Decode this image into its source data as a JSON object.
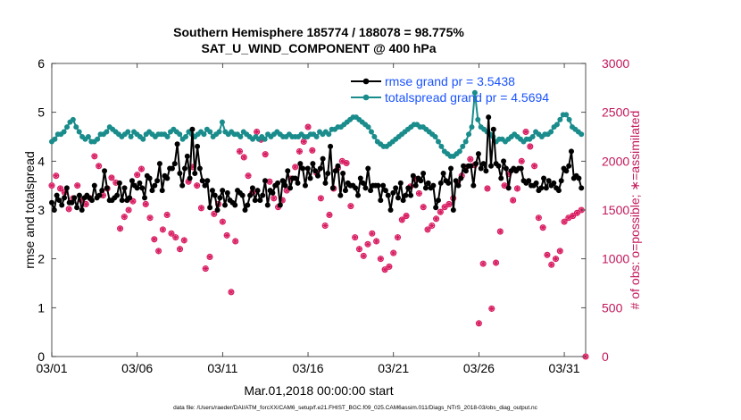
{
  "chart_data": {
    "type": "line",
    "title": [
      "Southern Hemisphere 185774 / 188078 = 98.775%",
      "SAT_U_WIND_COMPONENT @ 400 hPa"
    ],
    "xlabel": "Mar.01,2018 00:00:00 start",
    "ylabel_left": "rmse and totalspread",
    "ylabel_right": "# of obs: o=possible; ∗=assimilated",
    "footer": "data file: /Users/raeder/DAI/ATM_forcXX/CAM6_setup/f.e21.FHIST_BGC.f09_025.CAM6assim.011/Diags_NTrS_2018-03/obs_diag_output.nc",
    "xlim": [
      0,
      31.25
    ],
    "ylim_left": [
      0,
      6
    ],
    "ylim_right": [
      0,
      3000
    ],
    "x_ticks": [
      0,
      5,
      10,
      15,
      20,
      25,
      30
    ],
    "x_tick_labels": [
      "03/01",
      "03/06",
      "03/11",
      "03/16",
      "03/21",
      "03/26",
      "03/31"
    ],
    "y_left_ticks": [
      "0",
      "1",
      "2",
      "3",
      "4",
      "5",
      "6"
    ],
    "y_right_ticks": [
      "0",
      "500",
      "1000",
      "1500",
      "2000",
      "2500",
      "3000"
    ],
    "colors": {
      "rmse": "#000000",
      "spread": "#1a8c8c",
      "obs": "#d81b60",
      "legend_text": "#1a53ff",
      "axis_right": "#c2185b"
    },
    "legend": [
      {
        "name": "rmse",
        "label": "rmse grand pr = 3.5438"
      },
      {
        "name": "spread",
        "label": "totalspread grand pr = 4.5694"
      }
    ],
    "series": [
      {
        "name": "rmse",
        "values": [
          3.15,
          3.0,
          3.3,
          3.2,
          3.1,
          3.25,
          3.45,
          3.15,
          3.15,
          3.25,
          3.05,
          3.3,
          3.0,
          3.25,
          3.3,
          3.25,
          3.2,
          3.5,
          3.25,
          3.3,
          3.4,
          3.8,
          3.45,
          3.2,
          3.2,
          3.25,
          3.3,
          3.55,
          3.2,
          3.45,
          3.2,
          3.25,
          3.6,
          3.5,
          3.45,
          3.55,
          3.45,
          3.25,
          3.7,
          3.65,
          3.4,
          3.5,
          3.6,
          3.95,
          3.4,
          3.7,
          3.65,
          3.85,
          3.85,
          3.95,
          4.35,
          3.75,
          3.5,
          3.85,
          4.1,
          3.65,
          4.65,
          3.75,
          4.3,
          3.85,
          3.6,
          3.5,
          3.6,
          3.05,
          3.4,
          3.3,
          3.0,
          3.25,
          3.4,
          3.1,
          3.35,
          3.2,
          3.15,
          3.1,
          3.4,
          3.35,
          3.3,
          3.0,
          3.1,
          3.3,
          3.45,
          3.2,
          3.4,
          3.2,
          3.3,
          3.6,
          3.1,
          3.4,
          3.35,
          3.5,
          3.55,
          3.1,
          3.6,
          3.5,
          3.8,
          3.45,
          3.65,
          3.65,
          3.55,
          3.95,
          3.85,
          3.5,
          3.85,
          3.65,
          3.95,
          3.8,
          3.7,
          3.85,
          4.05,
          3.55,
          3.75,
          4.3,
          3.45,
          3.8,
          3.9,
          3.3,
          3.75,
          3.4,
          3.55,
          3.5,
          3.5,
          3.45,
          3.3,
          3.65,
          3.55,
          3.45,
          3.85,
          3.4,
          3.5,
          3.5,
          3.5,
          3.2,
          3.5,
          3.4,
          3.3,
          3.0,
          3.35,
          3.45,
          3.25,
          3.55,
          3.2,
          3.3,
          3.45,
          3.3,
          3.7,
          3.5,
          3.65,
          3.6,
          3.75,
          3.45,
          3.55,
          3.45,
          3.5,
          3.05,
          3.2,
          3.55,
          3.75,
          3.6,
          3.55,
          3.85,
          3.0,
          3.6,
          3.5,
          3.65,
          3.9,
          3.8,
          3.9,
          3.9,
          3.5,
          3.95,
          4.15,
          3.85,
          3.95,
          3.8,
          4.9,
          3.9,
          4.65,
          3.95,
          3.9,
          3.65,
          4.0,
          3.85,
          3.45,
          3.8,
          3.85,
          3.8,
          3.85,
          3.85,
          3.6,
          3.55,
          3.6,
          3.5,
          3.5,
          3.55,
          3.4,
          3.45,
          3.65,
          3.45,
          3.6,
          3.5,
          3.55,
          3.45,
          3.4,
          3.6,
          3.85,
          3.8,
          3.9,
          4.2,
          3.65,
          3.7,
          3.65,
          3.45
        ]
      },
      {
        "name": "totalspread",
        "values": [
          4.4,
          4.45,
          4.55,
          4.55,
          4.6,
          4.7,
          4.8,
          4.85,
          4.7,
          4.6,
          4.5,
          4.45,
          4.5,
          4.4,
          4.4,
          4.45,
          4.55,
          4.55,
          4.6,
          4.7,
          4.65,
          4.6,
          4.55,
          4.5,
          4.55,
          4.6,
          4.5,
          4.6,
          4.55,
          4.5,
          4.45,
          4.55,
          4.6,
          4.55,
          4.5,
          4.55,
          4.55,
          4.55,
          4.5,
          4.6,
          4.65,
          4.6,
          4.55,
          4.45,
          4.5,
          4.6,
          4.55,
          4.5,
          4.55,
          4.6,
          4.55,
          4.65,
          4.6,
          4.5,
          4.55,
          4.6,
          4.8,
          4.6,
          4.55,
          4.6,
          4.55,
          4.55,
          4.5,
          4.6,
          4.55,
          4.5,
          4.45,
          4.5,
          4.45,
          4.5,
          4.45,
          4.55,
          4.5,
          4.55,
          4.6,
          4.55,
          4.5,
          4.5,
          4.55,
          4.5,
          4.5,
          4.5,
          4.55,
          4.5,
          4.5,
          4.55,
          4.55,
          4.5,
          4.6,
          4.55,
          4.6,
          4.55,
          4.65,
          4.65,
          4.7,
          4.7,
          4.75,
          4.8,
          4.85,
          4.9,
          4.9,
          4.85,
          4.8,
          4.75,
          4.7,
          4.6,
          4.5,
          4.4,
          4.35,
          4.3,
          4.3,
          4.35,
          4.4,
          4.45,
          4.5,
          4.55,
          4.6,
          4.65,
          4.7,
          4.75,
          4.75,
          4.7,
          4.7,
          4.65,
          4.6,
          4.55,
          4.5,
          4.4,
          4.3,
          4.2,
          4.15,
          4.1,
          4.1,
          4.15,
          4.2,
          4.3,
          4.4,
          4.55,
          4.7,
          5.4,
          4.85,
          4.7,
          4.65,
          4.6,
          4.55,
          4.5,
          4.4,
          4.45,
          4.45,
          4.4,
          4.45,
          4.5,
          4.55,
          4.5,
          4.45,
          4.4,
          4.45,
          4.45,
          4.5,
          4.6,
          4.55,
          4.5,
          4.55,
          4.55,
          4.6,
          4.7,
          4.75,
          4.85,
          4.95,
          4.95,
          4.85,
          4.7,
          4.65,
          4.6,
          4.55
        ]
      }
    ],
    "possible_obs": [
      {
        "day": 0.0,
        "count": 1750
      },
      {
        "day": 0.25,
        "count": 1850
      },
      {
        "day": 0.5,
        "count": 1720
      },
      {
        "day": 0.75,
        "count": 1680
      },
      {
        "day": 1.0,
        "count": 1510
      },
      {
        "day": 1.25,
        "count": 1620
      },
      {
        "day": 1.5,
        "count": 1750
      },
      {
        "day": 1.75,
        "count": 1600
      },
      {
        "day": 2.0,
        "count": 1560
      },
      {
        "day": 2.25,
        "count": 1620
      },
      {
        "day": 2.5,
        "count": 2050
      },
      {
        "day": 2.75,
        "count": 1950
      },
      {
        "day": 3.0,
        "count": 1650
      },
      {
        "day": 3.25,
        "count": 1720
      },
      {
        "day": 3.5,
        "count": 1830
      },
      {
        "day": 3.75,
        "count": 1780
      },
      {
        "day": 4.0,
        "count": 1310
      },
      {
        "day": 4.25,
        "count": 1430
      },
      {
        "day": 4.5,
        "count": 1500
      },
      {
        "day": 4.75,
        "count": 1590
      },
      {
        "day": 5.0,
        "count": 1860
      },
      {
        "day": 5.25,
        "count": 1920
      },
      {
        "day": 5.5,
        "count": 1560
      },
      {
        "day": 5.75,
        "count": 1420
      },
      {
        "day": 6.0,
        "count": 1200
      },
      {
        "day": 6.25,
        "count": 1080
      },
      {
        "day": 6.5,
        "count": 1300
      },
      {
        "day": 6.75,
        "count": 1450
      },
      {
        "day": 7.0,
        "count": 1260
      },
      {
        "day": 7.25,
        "count": 1220
      },
      {
        "day": 7.5,
        "count": 1100
      },
      {
        "day": 7.75,
        "count": 1190
      },
      {
        "day": 8.0,
        "count": 1790
      },
      {
        "day": 8.25,
        "count": 1940
      },
      {
        "day": 8.5,
        "count": 1750
      },
      {
        "day": 8.75,
        "count": 1520
      },
      {
        "day": 9.0,
        "count": 900
      },
      {
        "day": 9.25,
        "count": 1020
      },
      {
        "day": 9.5,
        "count": 1460
      },
      {
        "day": 9.75,
        "count": 1560
      },
      {
        "day": 10.0,
        "count": 1380
      },
      {
        "day": 10.25,
        "count": 1240
      },
      {
        "day": 10.5,
        "count": 660
      },
      {
        "day": 10.75,
        "count": 1180
      },
      {
        "day": 11.0,
        "count": 2100
      },
      {
        "day": 11.25,
        "count": 2040
      },
      {
        "day": 11.5,
        "count": 1850
      },
      {
        "day": 11.75,
        "count": 1680
      },
      {
        "day": 12.0,
        "count": 2300
      },
      {
        "day": 12.25,
        "count": 2220
      },
      {
        "day": 12.5,
        "count": 2070
      },
      {
        "day": 12.75,
        "count": 1790
      },
      {
        "day": 13.0,
        "count": 1620
      },
      {
        "day": 13.25,
        "count": 1530
      },
      {
        "day": 13.5,
        "count": 1600
      },
      {
        "day": 13.75,
        "count": 1700
      },
      {
        "day": 14.0,
        "count": 1820
      },
      {
        "day": 14.25,
        "count": 1940
      },
      {
        "day": 14.5,
        "count": 2100
      },
      {
        "day": 14.75,
        "count": 2200
      },
      {
        "day": 15.0,
        "count": 2350
      },
      {
        "day": 15.25,
        "count": 2110
      },
      {
        "day": 15.5,
        "count": 1880
      },
      {
        "day": 15.75,
        "count": 1620
      },
      {
        "day": 16.0,
        "count": 1340
      },
      {
        "day": 16.25,
        "count": 1450
      },
      {
        "day": 16.5,
        "count": 1720
      },
      {
        "day": 16.75,
        "count": 1930
      },
      {
        "day": 17.0,
        "count": 2000
      },
      {
        "day": 17.25,
        "count": 1980
      },
      {
        "day": 17.5,
        "count": 1540
      },
      {
        "day": 17.75,
        "count": 1220
      },
      {
        "day": 18.0,
        "count": 1100
      },
      {
        "day": 18.25,
        "count": 1030
      },
      {
        "day": 18.5,
        "count": 1150
      },
      {
        "day": 18.75,
        "count": 1260
      },
      {
        "day": 19.0,
        "count": 1180
      },
      {
        "day": 19.25,
        "count": 1000
      },
      {
        "day": 19.5,
        "count": 890
      },
      {
        "day": 19.75,
        "count": 920
      },
      {
        "day": 20.0,
        "count": 1060
      },
      {
        "day": 20.25,
        "count": 1220
      },
      {
        "day": 20.5,
        "count": 1400
      },
      {
        "day": 20.75,
        "count": 1440
      },
      {
        "day": 21.0,
        "count": 1740
      },
      {
        "day": 21.25,
        "count": 1820
      },
      {
        "day": 21.5,
        "count": 1670
      },
      {
        "day": 21.75,
        "count": 1530
      },
      {
        "day": 22.0,
        "count": 1300
      },
      {
        "day": 22.25,
        "count": 1340
      },
      {
        "day": 22.5,
        "count": 1410
      },
      {
        "day": 22.75,
        "count": 1480
      },
      {
        "day": 23.0,
        "count": 1530
      },
      {
        "day": 23.25,
        "count": 1560
      },
      {
        "day": 23.5,
        "count": 1620
      },
      {
        "day": 23.75,
        "count": 1780
      },
      {
        "day": 24.0,
        "count": 1850
      },
      {
        "day": 24.25,
        "count": 1940
      },
      {
        "day": 24.5,
        "count": 2020
      },
      {
        "day": 24.75,
        "count": 1960
      },
      {
        "day": 25.0,
        "count": 340
      },
      {
        "day": 25.25,
        "count": 950
      },
      {
        "day": 25.5,
        "count": 1720
      },
      {
        "day": 25.75,
        "count": 490
      },
      {
        "day": 26.0,
        "count": 960
      },
      {
        "day": 26.25,
        "count": 1280
      },
      {
        "day": 26.5,
        "count": 1750
      },
      {
        "day": 26.75,
        "count": 1870
      },
      {
        "day": 27.0,
        "count": 1600
      },
      {
        "day": 27.25,
        "count": 1720
      },
      {
        "day": 27.5,
        "count": 2000
      },
      {
        "day": 27.75,
        "count": 2300
      },
      {
        "day": 28.0,
        "count": 2150
      },
      {
        "day": 28.25,
        "count": 1950
      },
      {
        "day": 28.5,
        "count": 1420
      },
      {
        "day": 28.75,
        "count": 1320
      },
      {
        "day": 29.0,
        "count": 1040
      },
      {
        "day": 29.25,
        "count": 940
      },
      {
        "day": 29.5,
        "count": 1000
      },
      {
        "day": 29.75,
        "count": 1080
      },
      {
        "day": 30.0,
        "count": 1380
      },
      {
        "day": 30.25,
        "count": 1420
      },
      {
        "day": 30.5,
        "count": 1440
      },
      {
        "day": 30.75,
        "count": 1470
      },
      {
        "day": 31.0,
        "count": 1500
      },
      {
        "day": 31.25,
        "count": 0
      }
    ]
  }
}
